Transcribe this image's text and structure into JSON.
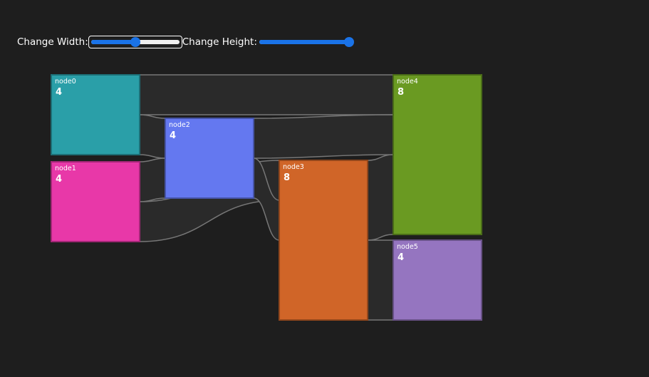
{
  "controls": {
    "width_label": "Change Width:",
    "height_label": "Change Height:",
    "width_slider_value": 0.5,
    "height_slider_value": 1.0,
    "slider_accent": "#1a73e8"
  },
  "sankey": {
    "nodes": [
      {
        "id": "node0",
        "value": 4,
        "color": "#2a9fa8"
      },
      {
        "id": "node1",
        "value": 4,
        "color": "#e838a8"
      },
      {
        "id": "node2",
        "value": 4,
        "color": "#6478f0"
      },
      {
        "id": "node3",
        "value": 8,
        "color": "#d06528"
      },
      {
        "id": "node4",
        "value": 8,
        "color": "#6a9a22"
      },
      {
        "id": "node5",
        "value": 4,
        "color": "#9575c0"
      }
    ],
    "links": [
      {
        "source": "node0",
        "target": "node4",
        "value": 2
      },
      {
        "source": "node0",
        "target": "node2",
        "value": 2
      },
      {
        "source": "node1",
        "target": "node2",
        "value": 2
      },
      {
        "source": "node1",
        "target": "node3",
        "value": 2
      },
      {
        "source": "node2",
        "target": "node4",
        "value": 2
      },
      {
        "source": "node2",
        "target": "node3",
        "value": 2
      },
      {
        "source": "node3",
        "target": "node4",
        "value": 4
      },
      {
        "source": "node3",
        "target": "node5",
        "value": 4
      }
    ]
  }
}
